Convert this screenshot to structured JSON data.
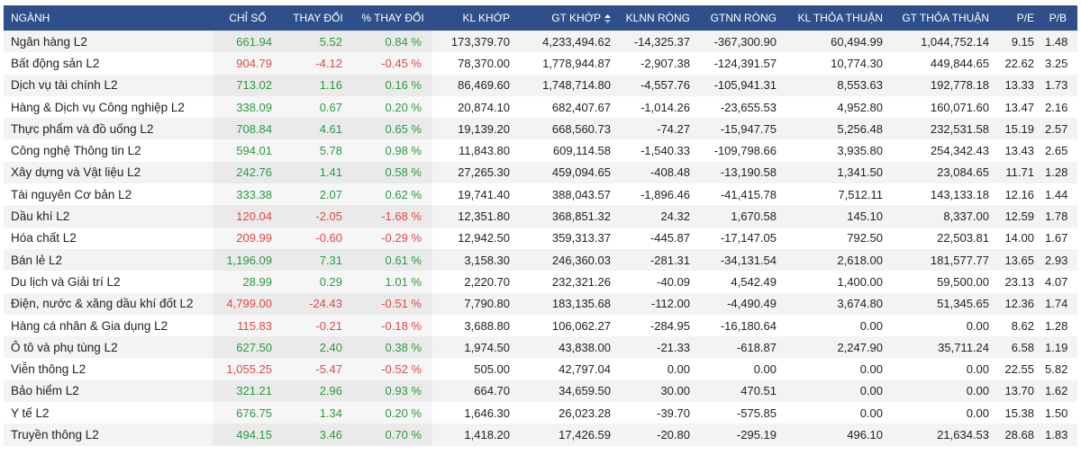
{
  "headers": [
    "NGÀNH",
    "CHỈ SỐ",
    "THAY ĐỔI",
    "% THAY ĐỔI",
    "KL KHỚP",
    "GT KHỚP",
    "KLNN RÒNG",
    "GTNN RÒNG",
    "KL THỎA THUẬN",
    "GT THỎA THUẬN",
    "P/E",
    "P/B"
  ],
  "colors": {
    "header_bg": "#2f4f8b",
    "up": "#2a9a3f",
    "down": "#e04848"
  },
  "sort_icon": "sort-up-down-icon",
  "rows": [
    {
      "name": "Ngân hàng L2",
      "index": "661.94",
      "change": "5.52",
      "pct": "0.84 %",
      "kl_khop": "173,379.70",
      "gt_khop": "4,233,494.62",
      "klnn": "-14,325.37",
      "gtnn": "-367,300.90",
      "kl_tt": "60,494.99",
      "gt_tt": "1,044,752.14",
      "pe": "9.15",
      "pb": "1.48",
      "dir": "up"
    },
    {
      "name": "Bất động sản L2",
      "index": "904.79",
      "change": "-4.12",
      "pct": "-0.45 %",
      "kl_khop": "78,370.00",
      "gt_khop": "1,778,944.87",
      "klnn": "-2,907.38",
      "gtnn": "-124,391.57",
      "kl_tt": "10,774.30",
      "gt_tt": "449,844.65",
      "pe": "22.62",
      "pb": "3.25",
      "dir": "down"
    },
    {
      "name": "Dịch vụ tài chính L2",
      "index": "713.02",
      "change": "1.16",
      "pct": "0.16 %",
      "kl_khop": "86,469.60",
      "gt_khop": "1,748,714.80",
      "klnn": "-4,557.76",
      "gtnn": "-105,941.31",
      "kl_tt": "8,553.63",
      "gt_tt": "192,778.18",
      "pe": "13.33",
      "pb": "1.73",
      "dir": "up"
    },
    {
      "name": "Hàng & Dịch vụ Công nghiệp L2",
      "index": "338.09",
      "change": "0.67",
      "pct": "0.20 %",
      "kl_khop": "20,874.10",
      "gt_khop": "682,407.67",
      "klnn": "-1,014.26",
      "gtnn": "-23,655.53",
      "kl_tt": "4,952.80",
      "gt_tt": "160,071.60",
      "pe": "13.47",
      "pb": "2.16",
      "dir": "up"
    },
    {
      "name": "Thực phẩm và đồ uống L2",
      "index": "708.84",
      "change": "4.61",
      "pct": "0.65 %",
      "kl_khop": "19,139.20",
      "gt_khop": "668,560.73",
      "klnn": "-74.27",
      "gtnn": "-15,947.75",
      "kl_tt": "5,256.48",
      "gt_tt": "232,531.58",
      "pe": "15.19",
      "pb": "2.57",
      "dir": "up"
    },
    {
      "name": "Công nghệ Thông tin L2",
      "index": "594.01",
      "change": "5.78",
      "pct": "0.98 %",
      "kl_khop": "11,843.80",
      "gt_khop": "609,114.58",
      "klnn": "-1,540.33",
      "gtnn": "-109,798.66",
      "kl_tt": "3,935.80",
      "gt_tt": "254,342.43",
      "pe": "13.43",
      "pb": "2.65",
      "dir": "up"
    },
    {
      "name": "Xây dựng và Vật liệu L2",
      "index": "242.76",
      "change": "1.41",
      "pct": "0.58 %",
      "kl_khop": "27,265.30",
      "gt_khop": "459,094.65",
      "klnn": "-408.48",
      "gtnn": "-13,190.58",
      "kl_tt": "1,341.50",
      "gt_tt": "23,084.65",
      "pe": "11.71",
      "pb": "1.28",
      "dir": "up"
    },
    {
      "name": "Tài nguyên Cơ bản L2",
      "index": "333.38",
      "change": "2.07",
      "pct": "0.62 %",
      "kl_khop": "19,741.40",
      "gt_khop": "388,043.57",
      "klnn": "-1,896.46",
      "gtnn": "-41,415.78",
      "kl_tt": "7,512.11",
      "gt_tt": "143,133.18",
      "pe": "12.16",
      "pb": "1.44",
      "dir": "up"
    },
    {
      "name": "Dầu khí L2",
      "index": "120.04",
      "change": "-2.05",
      "pct": "-1.68 %",
      "kl_khop": "12,351.80",
      "gt_khop": "368,851.32",
      "klnn": "24.32",
      "gtnn": "1,670.58",
      "kl_tt": "145.10",
      "gt_tt": "8,337.00",
      "pe": "12.59",
      "pb": "1.78",
      "dir": "down"
    },
    {
      "name": "Hóa chất L2",
      "index": "209.99",
      "change": "-0.60",
      "pct": "-0.29 %",
      "kl_khop": "12,942.50",
      "gt_khop": "359,313.37",
      "klnn": "-445.87",
      "gtnn": "-17,147.05",
      "kl_tt": "792.50",
      "gt_tt": "22,503.81",
      "pe": "14.00",
      "pb": "1.67",
      "dir": "down"
    },
    {
      "name": "Bán lẻ L2",
      "index": "1,196.09",
      "change": "7.31",
      "pct": "0.61 %",
      "kl_khop": "3,158.30",
      "gt_khop": "246,360.03",
      "klnn": "-281.31",
      "gtnn": "-34,131.54",
      "kl_tt": "2,618.00",
      "gt_tt": "181,577.77",
      "pe": "13.65",
      "pb": "2.93",
      "dir": "up"
    },
    {
      "name": "Du lịch và Giải trí L2",
      "index": "28.99",
      "change": "0.29",
      "pct": "1.01 %",
      "kl_khop": "2,220.70",
      "gt_khop": "232,321.26",
      "klnn": "-40.09",
      "gtnn": "4,542.49",
      "kl_tt": "1,400.00",
      "gt_tt": "59,500.00",
      "pe": "23.13",
      "pb": "4.07",
      "dir": "up"
    },
    {
      "name": "Điện, nước & xăng dầu khí đốt L2",
      "index": "4,799.00",
      "change": "-24.43",
      "pct": "-0.51 %",
      "kl_khop": "7,790.80",
      "gt_khop": "183,135.68",
      "klnn": "-112.00",
      "gtnn": "-4,490.49",
      "kl_tt": "3,674.80",
      "gt_tt": "51,345.65",
      "pe": "12.36",
      "pb": "1.74",
      "dir": "down"
    },
    {
      "name": "Hàng cá nhân & Gia dụng L2",
      "index": "115.83",
      "change": "-0.21",
      "pct": "-0.18 %",
      "kl_khop": "3,688.80",
      "gt_khop": "106,062.27",
      "klnn": "-284.95",
      "gtnn": "-16,180.64",
      "kl_tt": "0.00",
      "gt_tt": "0.00",
      "pe": "8.62",
      "pb": "1.28",
      "dir": "down"
    },
    {
      "name": "Ô tô và phụ tùng L2",
      "index": "627.50",
      "change": "2.40",
      "pct": "0.38 %",
      "kl_khop": "1,974.50",
      "gt_khop": "43,838.00",
      "klnn": "-21.33",
      "gtnn": "-618.87",
      "kl_tt": "2,247.90",
      "gt_tt": "35,711.24",
      "pe": "6.58",
      "pb": "1.19",
      "dir": "up"
    },
    {
      "name": "Viễn thông L2",
      "index": "1,055.25",
      "change": "-5.47",
      "pct": "-0.52 %",
      "kl_khop": "505.00",
      "gt_khop": "42,797.04",
      "klnn": "0.00",
      "gtnn": "0.00",
      "kl_tt": "0.00",
      "gt_tt": "0.00",
      "pe": "22.55",
      "pb": "5.82",
      "dir": "down"
    },
    {
      "name": "Bảo hiểm L2",
      "index": "321.21",
      "change": "2.96",
      "pct": "0.93 %",
      "kl_khop": "664.70",
      "gt_khop": "34,659.50",
      "klnn": "30.00",
      "gtnn": "470.51",
      "kl_tt": "0.00",
      "gt_tt": "0.00",
      "pe": "13.70",
      "pb": "1.62",
      "dir": "up"
    },
    {
      "name": "Y tế L2",
      "index": "676.75",
      "change": "1.34",
      "pct": "0.20 %",
      "kl_khop": "1,646.30",
      "gt_khop": "26,023.28",
      "klnn": "-39.70",
      "gtnn": "-575.85",
      "kl_tt": "0.00",
      "gt_tt": "0.00",
      "pe": "15.38",
      "pb": "1.50",
      "dir": "up"
    },
    {
      "name": "Truyền thông L2",
      "index": "494.15",
      "change": "3.46",
      "pct": "0.70 %",
      "kl_khop": "1,418.20",
      "gt_khop": "17,426.59",
      "klnn": "-20.80",
      "gtnn": "-295.19",
      "kl_tt": "496.10",
      "gt_tt": "21,634.53",
      "pe": "28.68",
      "pb": "1.83",
      "dir": "up"
    }
  ]
}
